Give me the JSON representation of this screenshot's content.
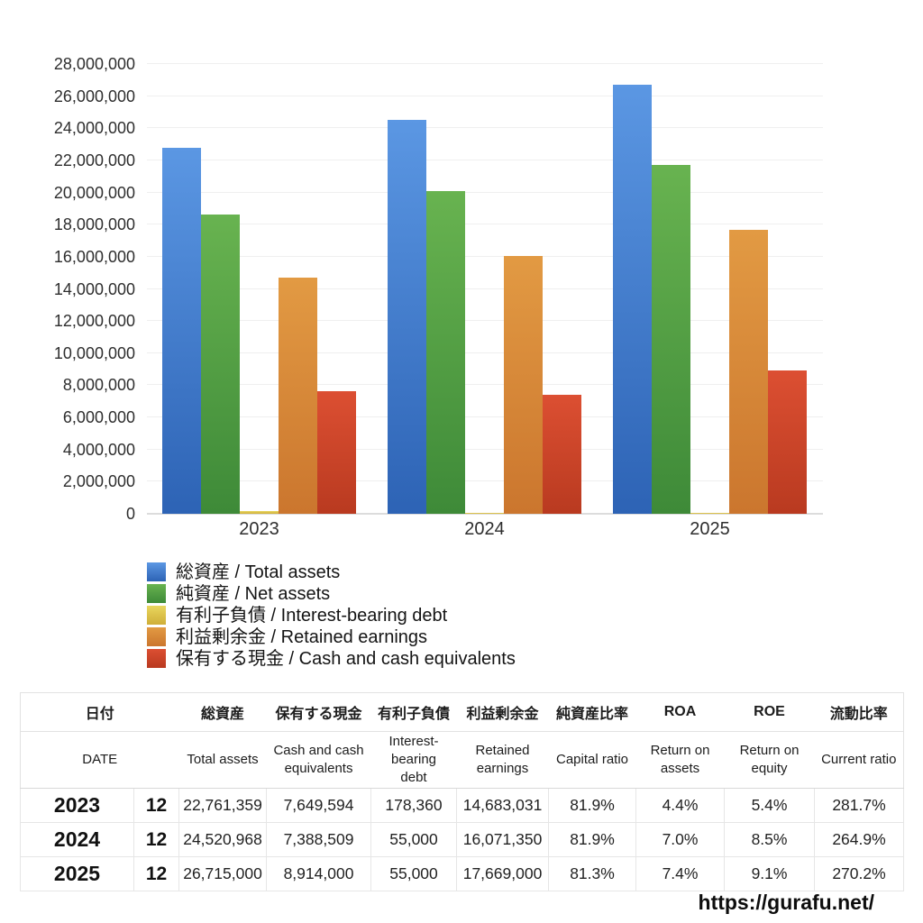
{
  "chart_data": {
    "type": "bar",
    "categories": [
      "2023",
      "2024",
      "2025"
    ],
    "series": [
      {
        "name": "総資産 / Total assets",
        "values": [
          22761359,
          24520968,
          26715000
        ],
        "color_top": "#5b97e3",
        "color_bottom": "#2d63b5"
      },
      {
        "name": "純資産 / Net assets",
        "values": [
          18641553,
          20082673,
          21719295
        ],
        "color_top": "#68b350",
        "color_bottom": "#3e8a38"
      },
      {
        "name": "有利子負債 / Interest-bearing debt",
        "values": [
          178360,
          55000,
          55000
        ],
        "color_top": "#e9d75e",
        "color_bottom": "#cfae38"
      },
      {
        "name": "利益剰余金 / Retained earnings",
        "values": [
          14683031,
          16071350,
          17669000
        ],
        "color_top": "#e29a43",
        "color_bottom": "#cb762e"
      },
      {
        "name": "保有する現金 /  Cash and cash equivalents",
        "values": [
          7649594,
          7388509,
          8914000
        ],
        "color_top": "#dc4f32",
        "color_bottom": "#b93a20"
      }
    ],
    "ylim": [
      0,
      28000000
    ],
    "y_tick_step": 2000000,
    "y_tick_labels": [
      "0",
      "2,000,000",
      "4,000,000",
      "6,000,000",
      "8,000,000",
      "10,000,000",
      "12,000,000",
      "14,000,000",
      "16,000,000",
      "18,000,000",
      "20,000,000",
      "22,000,000",
      "24,000,000",
      "26,000,000",
      "28,000,000"
    ],
    "grid": true,
    "legend_position": "bottom-left"
  },
  "table": {
    "columns_jp": [
      "日付",
      "総資産",
      "保有する現金",
      "有利子負債",
      "利益剰余金",
      "純資産比率",
      "ROA",
      "ROE",
      "流動比率"
    ],
    "columns_en": [
      "DATE",
      "Total assets",
      "Cash and cash equivalents",
      "Interest-bearing debt",
      "Retained earnings",
      "Capital ratio",
      "Return on assets",
      "Return on equity",
      "Current ratio"
    ],
    "rows": [
      {
        "year": "2023",
        "month": "12",
        "values": [
          "22,761,359",
          "7,649,594",
          "178,360",
          "14,683,031",
          "81.9%",
          "4.4%",
          "5.4%",
          "281.7%"
        ]
      },
      {
        "year": "2024",
        "month": "12",
        "values": [
          "24,520,968",
          "7,388,509",
          "55,000",
          "16,071,350",
          "81.9%",
          "7.0%",
          "8.5%",
          "264.9%"
        ]
      },
      {
        "year": "2025",
        "month": "12",
        "values": [
          "26,715,000",
          "8,914,000",
          "55,000",
          "17,669,000",
          "81.3%",
          "7.4%",
          "9.1%",
          "270.2%"
        ]
      }
    ]
  },
  "footer": {
    "url_text": "https://gurafu.net/"
  }
}
